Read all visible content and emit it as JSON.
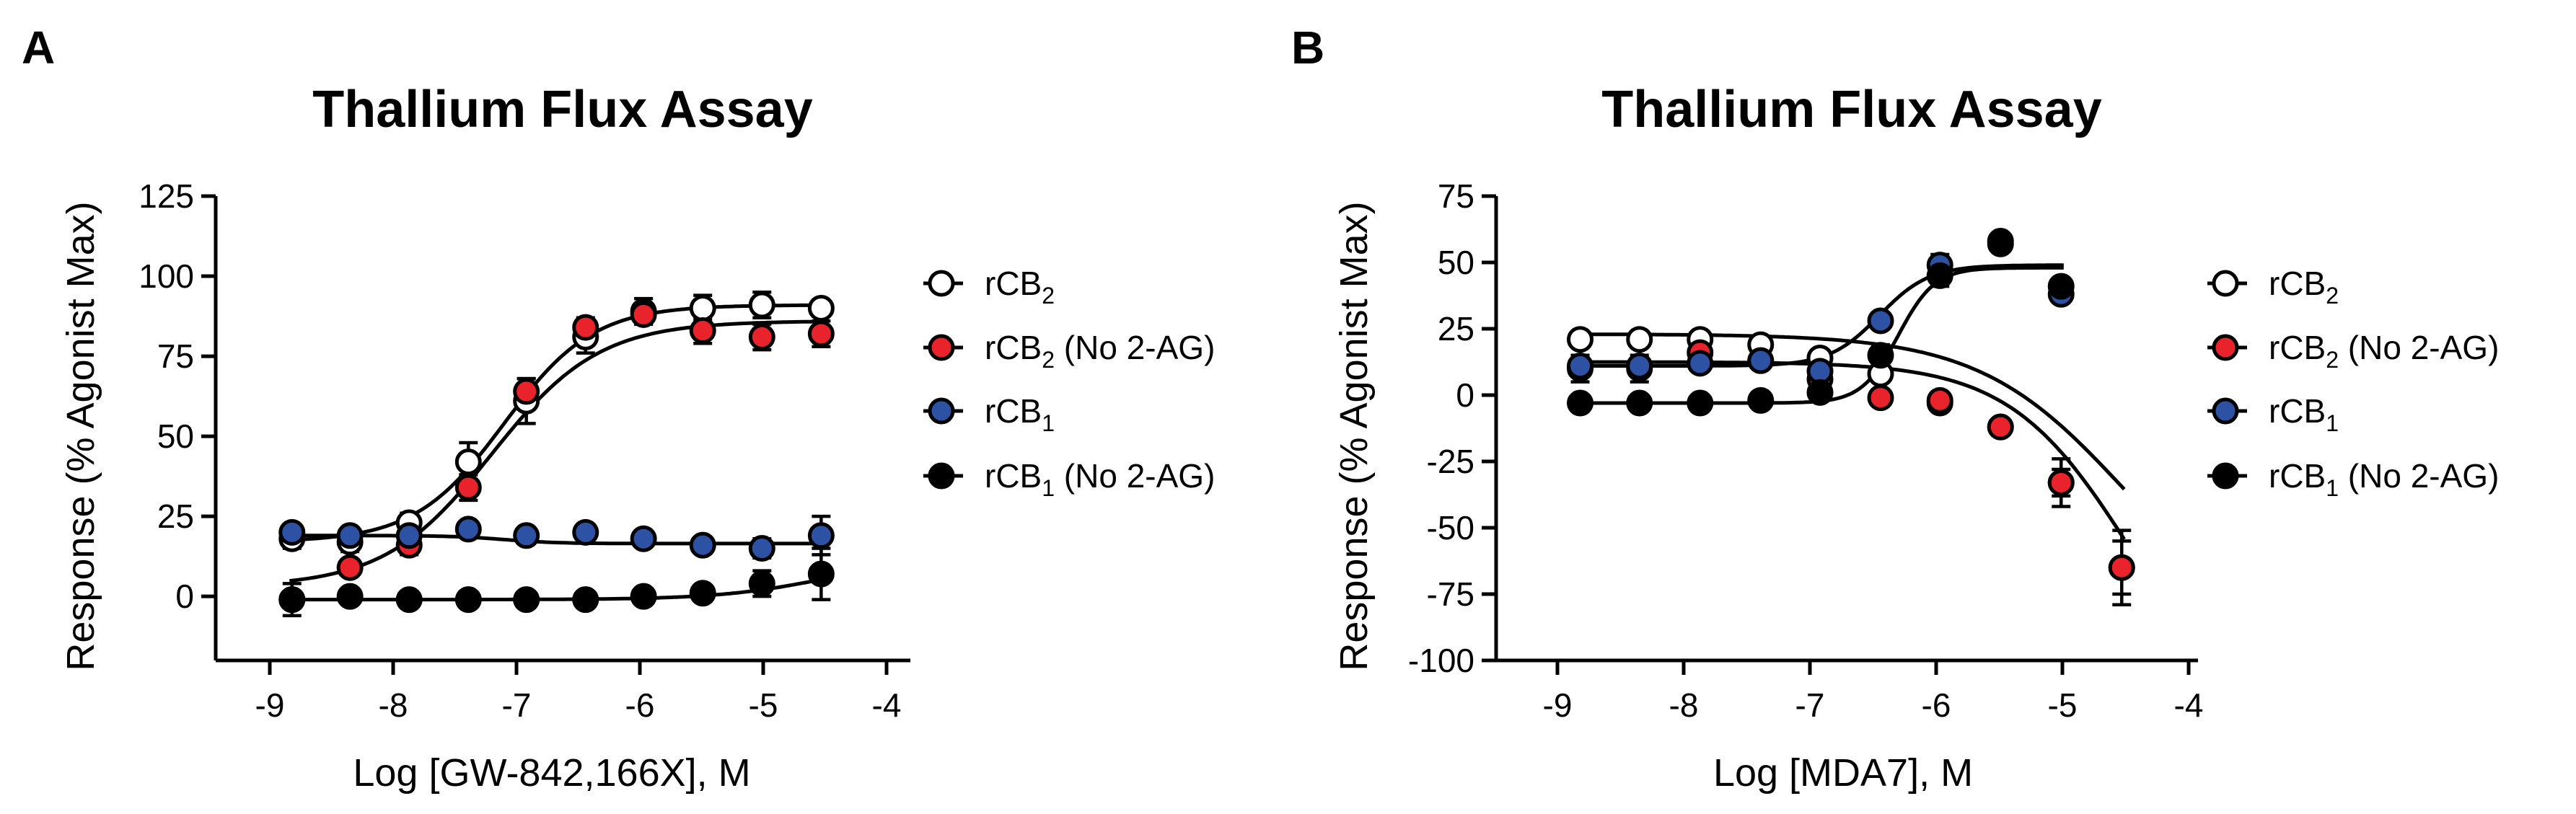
{
  "figure": {
    "panels": [
      "A",
      "B"
    ]
  },
  "chart_data": [
    {
      "panel": "A",
      "type": "scatter",
      "title": "Thallium Flux Assay",
      "xlabel": "Log [GW-842,166X], M",
      "ylabel": "Response (% Agonist Max)",
      "xlim": [
        -9.5,
        -4
      ],
      "ylim": [
        -20,
        125
      ],
      "xticks": [
        -9,
        -8,
        -7,
        -6,
        -5,
        -4
      ],
      "yticks": [
        0,
        25,
        50,
        75,
        100,
        125
      ],
      "legend_position": "right",
      "series": [
        {
          "name": "rCB2",
          "label_base": "rCB",
          "label_sub": "2",
          "label_suffix": "",
          "color": "#ffffff",
          "x": [
            -8.82,
            -8.35,
            -7.87,
            -7.39,
            -6.92,
            -6.44,
            -5.97,
            -5.49,
            -5.01,
            -4.53
          ],
          "y": [
            18,
            17,
            23,
            42,
            61,
            81,
            89,
            90,
            91,
            90
          ],
          "err": [
            3,
            3,
            3,
            6,
            7,
            5,
            4,
            4,
            4,
            2
          ],
          "fit": {
            "bottom": 17,
            "top": 91,
            "logec50": -7.1,
            "hill": 1.2
          }
        },
        {
          "name": "rCB2 (No 2-AG)",
          "label_base": "rCB",
          "label_sub": "2",
          "label_suffix": " (No 2-AG)",
          "color": "#e8232b",
          "x": [
            -8.82,
            -8.35,
            -7.87,
            -7.39,
            -6.92,
            -6.44,
            -5.97,
            -5.49,
            -5.01,
            -4.53
          ],
          "y": [
            -1,
            9,
            16,
            34,
            64,
            84,
            88,
            83,
            81,
            82
          ],
          "err": [
            5,
            2,
            3,
            4,
            4,
            3,
            3,
            4,
            4,
            4
          ],
          "fit": {
            "bottom": 3,
            "top": 86,
            "logec50": -7.2,
            "hill": 1.0
          }
        },
        {
          "name": "rCB1",
          "label_base": "rCB",
          "label_sub": "1",
          "label_suffix": "",
          "color": "#2d52a3",
          "x": [
            -8.82,
            -8.35,
            -7.87,
            -7.39,
            -6.92,
            -6.44,
            -5.97,
            -5.49,
            -5.01,
            -4.53
          ],
          "y": [
            20,
            19,
            19,
            21,
            19,
            20,
            18,
            16,
            15,
            19
          ],
          "err": [
            2,
            2,
            2,
            2,
            2,
            2,
            2,
            2,
            3,
            6
          ],
          "fit": {
            "bottom": 19,
            "top": 16.5,
            "logec50": -7.1,
            "hill": 2.0
          }
        },
        {
          "name": "rCB1 (No 2-AG)",
          "label_base": "rCB",
          "label_sub": "1",
          "label_suffix": " (No 2-AG)",
          "color": "#000000",
          "x": [
            -8.82,
            -8.35,
            -7.87,
            -7.39,
            -6.92,
            -6.44,
            -5.97,
            -5.49,
            -5.01,
            -4.53
          ],
          "y": [
            -1,
            0,
            -1,
            -1,
            -1,
            -1,
            0,
            1,
            4,
            7
          ],
          "err": [
            1,
            1,
            1,
            1,
            1,
            1,
            1,
            1,
            4,
            8
          ],
          "fit": {
            "bottom": -1,
            "top": 12,
            "logec50": -4.5,
            "hill": 1.0
          }
        }
      ]
    },
    {
      "panel": "B",
      "type": "scatter",
      "title": "Thallium Flux Assay",
      "xlabel": "Log [MDA7], M",
      "ylabel": "Response (% Agonist Max)",
      "xlim": [
        -9.5,
        -4
      ],
      "ylim": [
        -100,
        75
      ],
      "xticks": [
        -9,
        -8,
        -7,
        -6,
        -5,
        -4
      ],
      "yticks": [
        -100,
        -75,
        -50,
        -25,
        0,
        25,
        50,
        75
      ],
      "legend_position": "right",
      "series": [
        {
          "name": "rCB2",
          "label_base": "rCB",
          "label_sub": "2",
          "label_suffix": "",
          "color": "#ffffff",
          "x": [
            -8.82,
            -8.35,
            -7.87,
            -7.39,
            -6.92,
            -6.44,
            -5.97,
            -5.49,
            -5.01,
            -4.53
          ],
          "y": [
            21,
            21,
            21,
            19,
            14,
            8,
            -3,
            -12,
            -33,
            -65
          ],
          "err": [
            2,
            2,
            2,
            2,
            2,
            2,
            2,
            3,
            5,
            10
          ],
          "fit": {
            "bottom": 23,
            "top": -95,
            "logec50": -4.5,
            "hill": 0.75
          }
        },
        {
          "name": "rCB2 (No 2-AG)",
          "label_base": "rCB",
          "label_sub": "2",
          "label_suffix": " (No 2-AG)",
          "color": "#e8232b",
          "x": [
            -8.82,
            -8.35,
            -7.87,
            -7.39,
            -6.92,
            -6.44,
            -5.97,
            -5.49,
            -5.01,
            -4.53
          ],
          "y": [
            10,
            10,
            16,
            13,
            6,
            -1,
            -2,
            -12,
            -33,
            -65
          ],
          "err": [
            5,
            5,
            3,
            3,
            4,
            2,
            2,
            3,
            9,
            14
          ],
          "fit": {
            "bottom": 12.5,
            "top": -130,
            "logec50": -4.45,
            "hill": 0.9
          }
        },
        {
          "name": "rCB1",
          "label_base": "rCB",
          "label_sub": "1",
          "label_suffix": "",
          "color": "#2d52a3",
          "x": [
            -8.82,
            -8.35,
            -7.87,
            -7.39,
            -6.92,
            -6.44,
            -5.97,
            -5.49,
            -5.01
          ],
          "y": [
            11,
            11,
            12,
            13,
            9,
            28,
            49,
            58,
            38
          ],
          "err": [
            2,
            2,
            2,
            2,
            2,
            2,
            4,
            2,
            2
          ],
          "fit": {
            "bottom": 11,
            "top": 49,
            "logec50": -6.45,
            "hill": 2.2
          }
        },
        {
          "name": "rCB1 (No 2-AG)",
          "label_base": "rCB",
          "label_sub": "1",
          "label_suffix": " (No 2-AG)",
          "color": "#000000",
          "x": [
            -8.82,
            -8.35,
            -7.87,
            -7.39,
            -6.92,
            -6.44,
            -5.97,
            -5.49,
            -5.01
          ],
          "y": [
            -3,
            -3,
            -3,
            -2,
            1,
            15,
            45,
            57,
            41
          ],
          "err": [
            2,
            2,
            2,
            2,
            3,
            4,
            4,
            2,
            2
          ],
          "fit": {
            "bottom": -3,
            "top": 48,
            "logec50": -6.3,
            "hill": 3.0
          }
        }
      ]
    }
  ]
}
